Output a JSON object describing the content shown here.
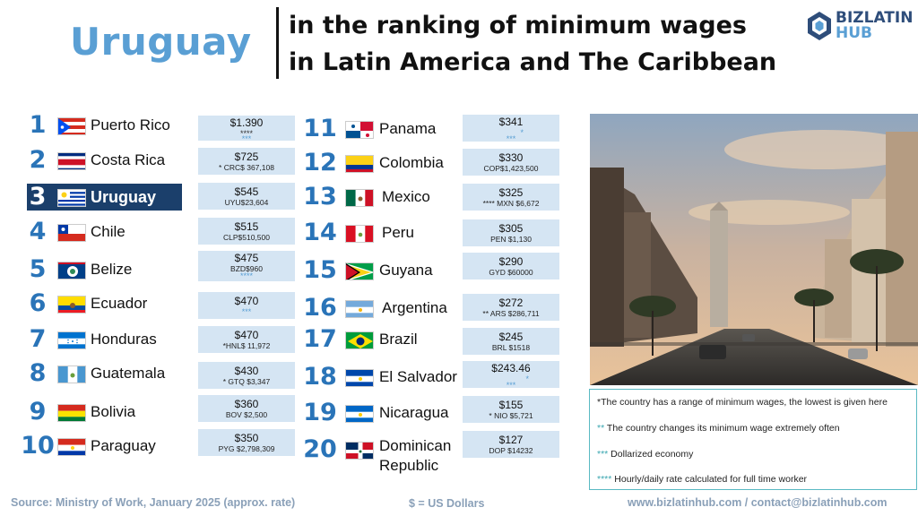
{
  "header": {
    "country": "Uruguay",
    "title_line1": "in the ranking of minimum wages",
    "title_line2": "in Latin America and The Caribbean"
  },
  "logo": {
    "line1": "BIZLATIN",
    "line2": "HUB",
    "icon": "biz-latin-hub-logo-icon"
  },
  "ranking": [
    {
      "rank": "1",
      "country": "Puerto Rico",
      "wage": "$1.390",
      "sub1": "****",
      "sub2": "***"
    },
    {
      "rank": "2",
      "country": "Costa Rica",
      "wage": "$725",
      "sub1": "* CRC$ 367,108",
      "sub2": ""
    },
    {
      "rank": "3",
      "country": "Uruguay",
      "wage": "$545",
      "sub1": "UYU$23,604",
      "sub2": ""
    },
    {
      "rank": "4",
      "country": "Chile",
      "wage": "$515",
      "sub1": "CLP$510,500",
      "sub2": ""
    },
    {
      "rank": "5",
      "country": "Belize",
      "wage": "$475",
      "sub1": "BZD$960",
      "sub2": "****"
    },
    {
      "rank": "6",
      "country": "Ecuador",
      "wage": "$470",
      "sub1": "***",
      "sub2": ""
    },
    {
      "rank": "7",
      "country": "Honduras",
      "wage": "$470",
      "sub1": "*HNL$ 11,972",
      "sub2": ""
    },
    {
      "rank": "8",
      "country": "Guatemala",
      "wage": "$430",
      "sub1": "* GTQ $3,347",
      "sub2": ""
    },
    {
      "rank": "9",
      "country": "Bolivia",
      "wage": "$360",
      "sub1": "BOV $2,500",
      "sub2": ""
    },
    {
      "rank": "10",
      "country": "Paraguay",
      "wage": "$350",
      "sub1": "PYG $2,798,309",
      "sub2": ""
    },
    {
      "rank": "11",
      "country": "Panama",
      "wage": "$341",
      "sub1": "*",
      "sub2": "***"
    },
    {
      "rank": "12",
      "country": "Colombia",
      "wage": "$330",
      "sub1": "COP$1,423,500",
      "sub2": ""
    },
    {
      "rank": "13",
      "country": "Mexico",
      "wage": "$325",
      "sub1": "**** MXN $6,672",
      "sub2": ""
    },
    {
      "rank": "14",
      "country": "Peru",
      "wage": "$305",
      "sub1": "PEN $1,130",
      "sub2": ""
    },
    {
      "rank": "15",
      "country": "Guyana",
      "wage": "$290",
      "sub1": "GYD $60000",
      "sub2": ""
    },
    {
      "rank": "16",
      "country": "Argentina",
      "wage": "$272",
      "sub1": "** ARS $286,711",
      "sub2": ""
    },
    {
      "rank": "17",
      "country": "Brazil",
      "wage": "$245",
      "sub1": "BRL $1518",
      "sub2": ""
    },
    {
      "rank": "18",
      "country": "El Salvador",
      "wage": "$243.46",
      "sub1": "*",
      "sub2": "***"
    },
    {
      "rank": "19",
      "country": "Nicaragua",
      "wage": "$155",
      "sub1": "* NIO $5,721",
      "sub2": ""
    },
    {
      "rank": "20",
      "country": "Dominican Republic",
      "country_line1": "Dominican",
      "country_line2": "Republic",
      "wage": "$127",
      "sub1": "DOP $14232",
      "sub2": ""
    }
  ],
  "legend": {
    "item1": "*The country has a range of minimum wages, the lowest is given here",
    "item2_stars": "**",
    "item2": " The country changes its minimum wage extremely often",
    "item3_stars": "***",
    "item3": " Dollarized economy",
    "item4_stars": "****",
    "item4": " Hourly/daily rate calculated for full time worker"
  },
  "footer": {
    "source": "Source: Ministry of Work, January 2025 (approx. rate)",
    "currency": "$ = US Dollars",
    "web": "www.bizlatinhub.com / contact@bizlatinhub.com"
  },
  "colors": {
    "accent_blue": "#5a9fd4",
    "rank_blue": "#2a74b8",
    "highlight_navy": "#1b3f6b",
    "wage_box": "#d5e5f3",
    "legend_border": "#59b9c3"
  }
}
